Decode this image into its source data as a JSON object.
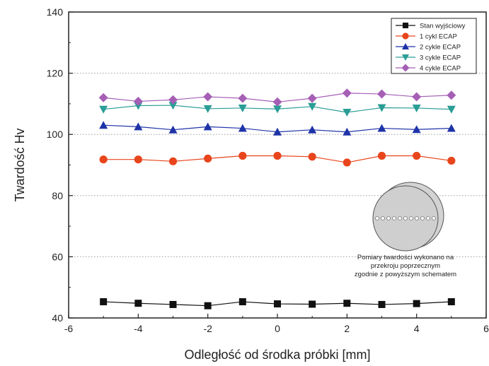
{
  "chart_data": {
    "type": "line",
    "xlabel": "Odległość od środka próbki [mm]",
    "ylabel": "Twardość Hv",
    "xlim": [
      -6,
      6
    ],
    "ylim": [
      40,
      140
    ],
    "xticks": [
      -6,
      -4,
      -2,
      0,
      2,
      4,
      6
    ],
    "yticks": [
      40,
      60,
      80,
      100,
      120,
      140
    ],
    "grid": "horizontal dotted at 60, 80, 100, 120",
    "legend_position": "top-right",
    "x": [
      -5,
      -4,
      -3,
      -2,
      -1,
      0,
      1,
      2,
      3,
      4,
      5
    ],
    "series": [
      {
        "name": "Stan wyjściowy",
        "color": "#111111",
        "marker": "square",
        "values": [
          45.3,
          44.8,
          44.4,
          44.0,
          45.3,
          44.6,
          44.5,
          44.8,
          44.4,
          44.7,
          45.3
        ]
      },
      {
        "name": "1 cykl ECAP",
        "color": "#e8451c",
        "marker": "circle",
        "values": [
          91.8,
          91.8,
          91.2,
          92.1,
          93.0,
          93.0,
          92.7,
          90.8,
          93.0,
          93.0,
          91.4
        ]
      },
      {
        "name": "2 cykle ECAP",
        "color": "#1f33a8",
        "marker": "triangle-up",
        "values": [
          103.0,
          102.5,
          101.5,
          102.5,
          102.0,
          100.8,
          101.5,
          100.8,
          102.0,
          101.6,
          102.0
        ]
      },
      {
        "name": "3 cykle ECAP",
        "color": "#2a9d96",
        "marker": "triangle-down",
        "values": [
          108.2,
          109.4,
          109.5,
          108.4,
          108.6,
          108.3,
          109.1,
          107.2,
          108.7,
          108.6,
          108.2
        ]
      },
      {
        "name": "4 cykle ECAP",
        "color": "#a55fb5",
        "marker": "diamond",
        "values": [
          112.0,
          110.8,
          111.3,
          112.3,
          111.8,
          110.6,
          111.8,
          113.5,
          113.2,
          112.3,
          112.8
        ]
      }
    ],
    "annotation": "Pomiary twardości wykonano na przekroju poprzecznym zgodnie z powyższym schematem",
    "annotation_lines": [
      "Pomiary twardości wykonano na",
      "przekroju poprzecznym",
      "zgodnie z powyższym schematem"
    ]
  }
}
